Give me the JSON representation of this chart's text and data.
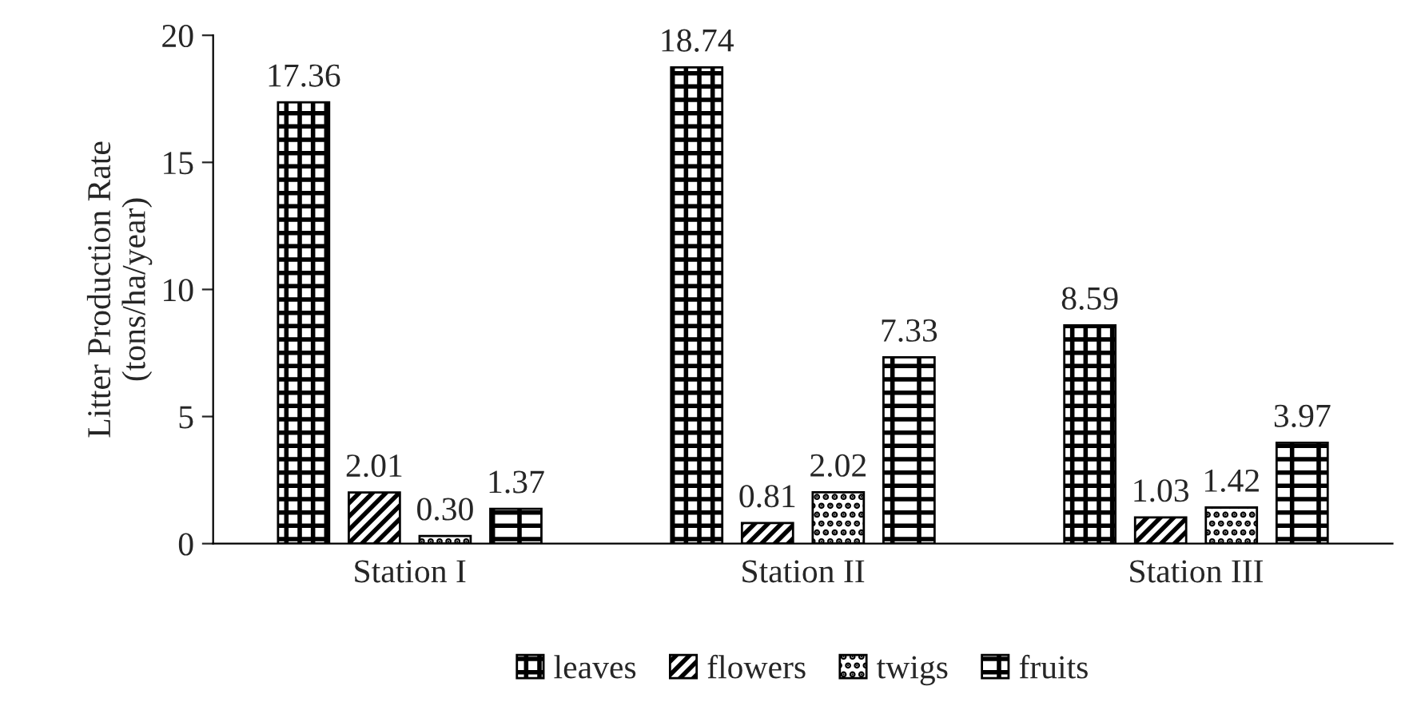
{
  "chart_data": {
    "type": "bar",
    "ylabel": "Litter Production Rate\n(tons/ha/year)",
    "categories": [
      "Station I",
      "Station II",
      "Station III"
    ],
    "series": [
      {
        "name": "leaves",
        "color": "#000000",
        "values": [
          17.36,
          18.74,
          8.59
        ]
      },
      {
        "name": "flowers",
        "color": "#000000",
        "values": [
          2.01,
          0.81,
          1.03
        ]
      },
      {
        "name": "twigs",
        "color": "#000000",
        "values": [
          0.3,
          2.02,
          1.42
        ]
      },
      {
        "name": "fruits",
        "color": "#000000",
        "values": [
          1.37,
          7.33,
          3.97
        ]
      }
    ],
    "value_labels": [
      [
        "17.36",
        "18.74",
        "8.59"
      ],
      [
        "2.01",
        "0.81",
        "1.03"
      ],
      [
        "0.30",
        "2.02",
        "1.42"
      ],
      [
        "1.37",
        "7.33",
        "3.97"
      ]
    ],
    "ylim": [
      0,
      20
    ],
    "yticks": [
      0,
      5,
      10,
      15,
      20
    ],
    "grid": false,
    "legend": "bottom"
  }
}
